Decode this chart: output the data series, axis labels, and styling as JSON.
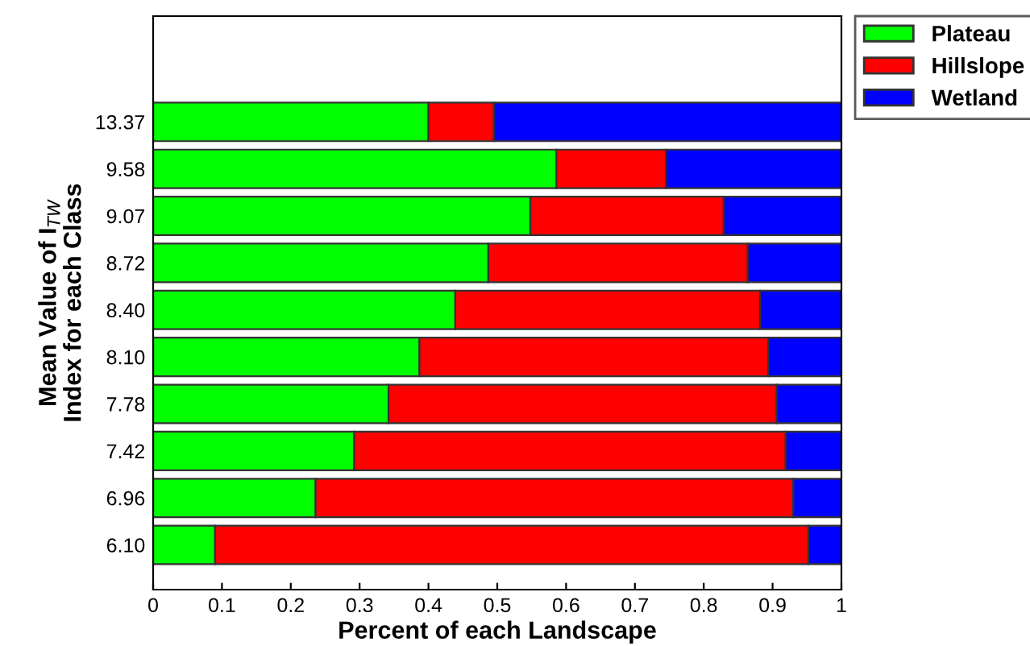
{
  "chart_data": {
    "type": "bar",
    "orientation": "horizontal",
    "stacked": true,
    "xlabel": "Percent of each Landscape",
    "ylabel": "Mean Value of I$_{TW}$\nIndex for each Class",
    "categories": [
      "13.37",
      "9.58",
      "9.07",
      "8.72",
      "8.40",
      "8.10",
      "7.78",
      "7.42",
      "6.96",
      "6.10"
    ],
    "series": [
      {
        "name": "Plateau",
        "color": "#00ff00",
        "values": [
          0.4,
          0.586,
          0.548,
          0.487,
          0.439,
          0.387,
          0.342,
          0.292,
          0.236,
          0.09
        ]
      },
      {
        "name": "Hillslope",
        "color": "#ff0000",
        "values": [
          0.095,
          0.159,
          0.281,
          0.377,
          0.443,
          0.507,
          0.564,
          0.627,
          0.694,
          0.862
        ]
      },
      {
        "name": "Wetland",
        "color": "#0000ff",
        "values": [
          0.505,
          0.255,
          0.171,
          0.136,
          0.118,
          0.106,
          0.094,
          0.081,
          0.07,
          0.048
        ]
      }
    ],
    "xlim": [
      0,
      1
    ],
    "xticks": [
      0,
      0.1,
      0.2,
      0.3,
      0.4,
      0.5,
      0.6,
      0.7,
      0.8,
      0.9,
      1
    ],
    "legend": "top right",
    "grid": false
  }
}
